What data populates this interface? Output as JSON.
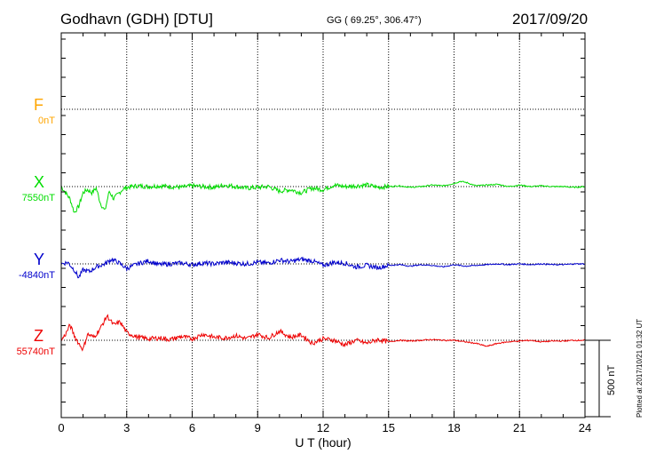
{
  "header": {
    "station": "Godhavn (GDH)  [DTU]",
    "coords": "GG ( 69.25°, 306.47°)",
    "date": "2017/09/20"
  },
  "channels": [
    {
      "name": "F",
      "baseline": "0nT",
      "color": "#FFA500"
    },
    {
      "name": "X",
      "baseline": "7550nT",
      "color": "#00DD00"
    },
    {
      "name": "Y",
      "baseline": "-4840nT",
      "color": "#0000CC"
    },
    {
      "name": "Z",
      "baseline": "55740nT",
      "color": "#EE0000"
    }
  ],
  "plotted_note": "Plotted at 2017/10/21 01:32 UT",
  "chart_data": {
    "type": "line",
    "title": "Godhavn (GDH)  [DTU]",
    "subtitle": "GG ( 69.25°, 306.47°)",
    "xlabel": "U T (hour)",
    "xlim": [
      0,
      24
    ],
    "xticks": [
      "0",
      "3",
      "6",
      "9",
      "12",
      "15",
      "18",
      "21",
      "24"
    ],
    "scale_bar": "500 nT",
    "grid": true,
    "series": [
      {
        "name": "X",
        "baseline": "7550nT",
        "color": "#00DD00",
        "x": [
          0,
          0.2,
          0.4,
          0.6,
          0.8,
          1.0,
          1.2,
          1.4,
          1.6,
          1.8,
          2.0,
          2.2,
          2.4,
          2.6,
          2.8,
          3.0,
          3.5,
          4,
          4.5,
          5,
          5.5,
          6,
          6.5,
          7,
          7.5,
          8,
          8.5,
          9,
          9.5,
          10,
          10.5,
          11,
          11.5,
          12,
          12.5,
          13,
          13.5,
          14,
          14.5,
          15,
          15.5,
          16,
          16.5,
          17,
          17.5,
          18,
          18.3,
          18.6,
          19,
          19.5,
          20,
          20.5,
          21,
          21.5,
          22,
          22.5,
          23,
          23.5,
          24
        ],
        "y": [
          0,
          -40,
          -80,
          -170,
          -130,
          -40,
          -20,
          -40,
          -10,
          -110,
          -160,
          -30,
          -80,
          -50,
          -20,
          -5,
          5,
          0,
          5,
          0,
          -5,
          5,
          0,
          -5,
          10,
          0,
          -10,
          -5,
          0,
          -30,
          -20,
          -40,
          -10,
          -20,
          10,
          0,
          5,
          10,
          -5,
          0,
          5,
          -5,
          0,
          10,
          5,
          20,
          35,
          25,
          5,
          10,
          15,
          0,
          10,
          0,
          5,
          0,
          0,
          -5,
          0
        ]
      },
      {
        "name": "Y",
        "baseline": "-4840nT",
        "color": "#0000CC",
        "x": [
          0,
          0.3,
          0.6,
          0.8,
          1.0,
          1.3,
          1.6,
          2.0,
          2.3,
          2.6,
          3.0,
          3.5,
          4,
          4.5,
          5,
          5.5,
          6,
          6.5,
          7,
          7.5,
          8,
          8.5,
          9,
          9.5,
          10,
          10.5,
          11,
          11.5,
          12,
          12.5,
          13,
          13.5,
          14,
          14.5,
          15,
          15.5,
          16,
          16.5,
          17,
          17.5,
          18,
          18.5,
          19,
          19.5,
          20,
          20.5,
          21,
          21.5,
          22,
          22.5,
          23,
          23.5,
          24
        ],
        "y": [
          0,
          10,
          -40,
          -90,
          -40,
          -50,
          -20,
          0,
          30,
          10,
          -30,
          0,
          20,
          -5,
          0,
          5,
          -5,
          5,
          0,
          10,
          5,
          0,
          10,
          5,
          25,
          15,
          30,
          20,
          -10,
          10,
          5,
          -20,
          -10,
          -25,
          -10,
          -5,
          -15,
          -5,
          -10,
          -20,
          -5,
          -15,
          -10,
          -5,
          0,
          -5,
          0,
          -5,
          0,
          -5,
          -5,
          0,
          0
        ]
      },
      {
        "name": "Z",
        "baseline": "55740nT",
        "color": "#EE0000",
        "x": [
          0,
          0.2,
          0.4,
          0.6,
          0.8,
          1.0,
          1.2,
          1.5,
          1.8,
          2.1,
          2.4,
          2.7,
          3.0,
          3.5,
          4,
          4.5,
          5,
          5.5,
          6,
          6.5,
          7,
          7.5,
          8,
          8.5,
          9,
          9.5,
          10,
          10.5,
          11,
          11.5,
          12,
          12.5,
          13,
          13.5,
          14,
          14.5,
          15,
          15.5,
          16,
          16.5,
          17,
          17.5,
          18,
          18.5,
          19,
          19.5,
          20,
          20.5,
          21,
          21.5,
          22,
          22.5,
          23,
          23.5,
          24
        ],
        "y": [
          0,
          40,
          100,
          30,
          -20,
          -60,
          40,
          20,
          80,
          160,
          100,
          120,
          50,
          20,
          10,
          15,
          5,
          25,
          10,
          40,
          20,
          15,
          30,
          10,
          40,
          15,
          60,
          20,
          35,
          -20,
          10,
          0,
          -30,
          0,
          -20,
          5,
          -10,
          0,
          -5,
          0,
          5,
          0,
          0,
          -10,
          -20,
          -40,
          -20,
          -10,
          -5,
          0,
          -10,
          -5,
          -5,
          0,
          0
        ]
      }
    ]
  }
}
